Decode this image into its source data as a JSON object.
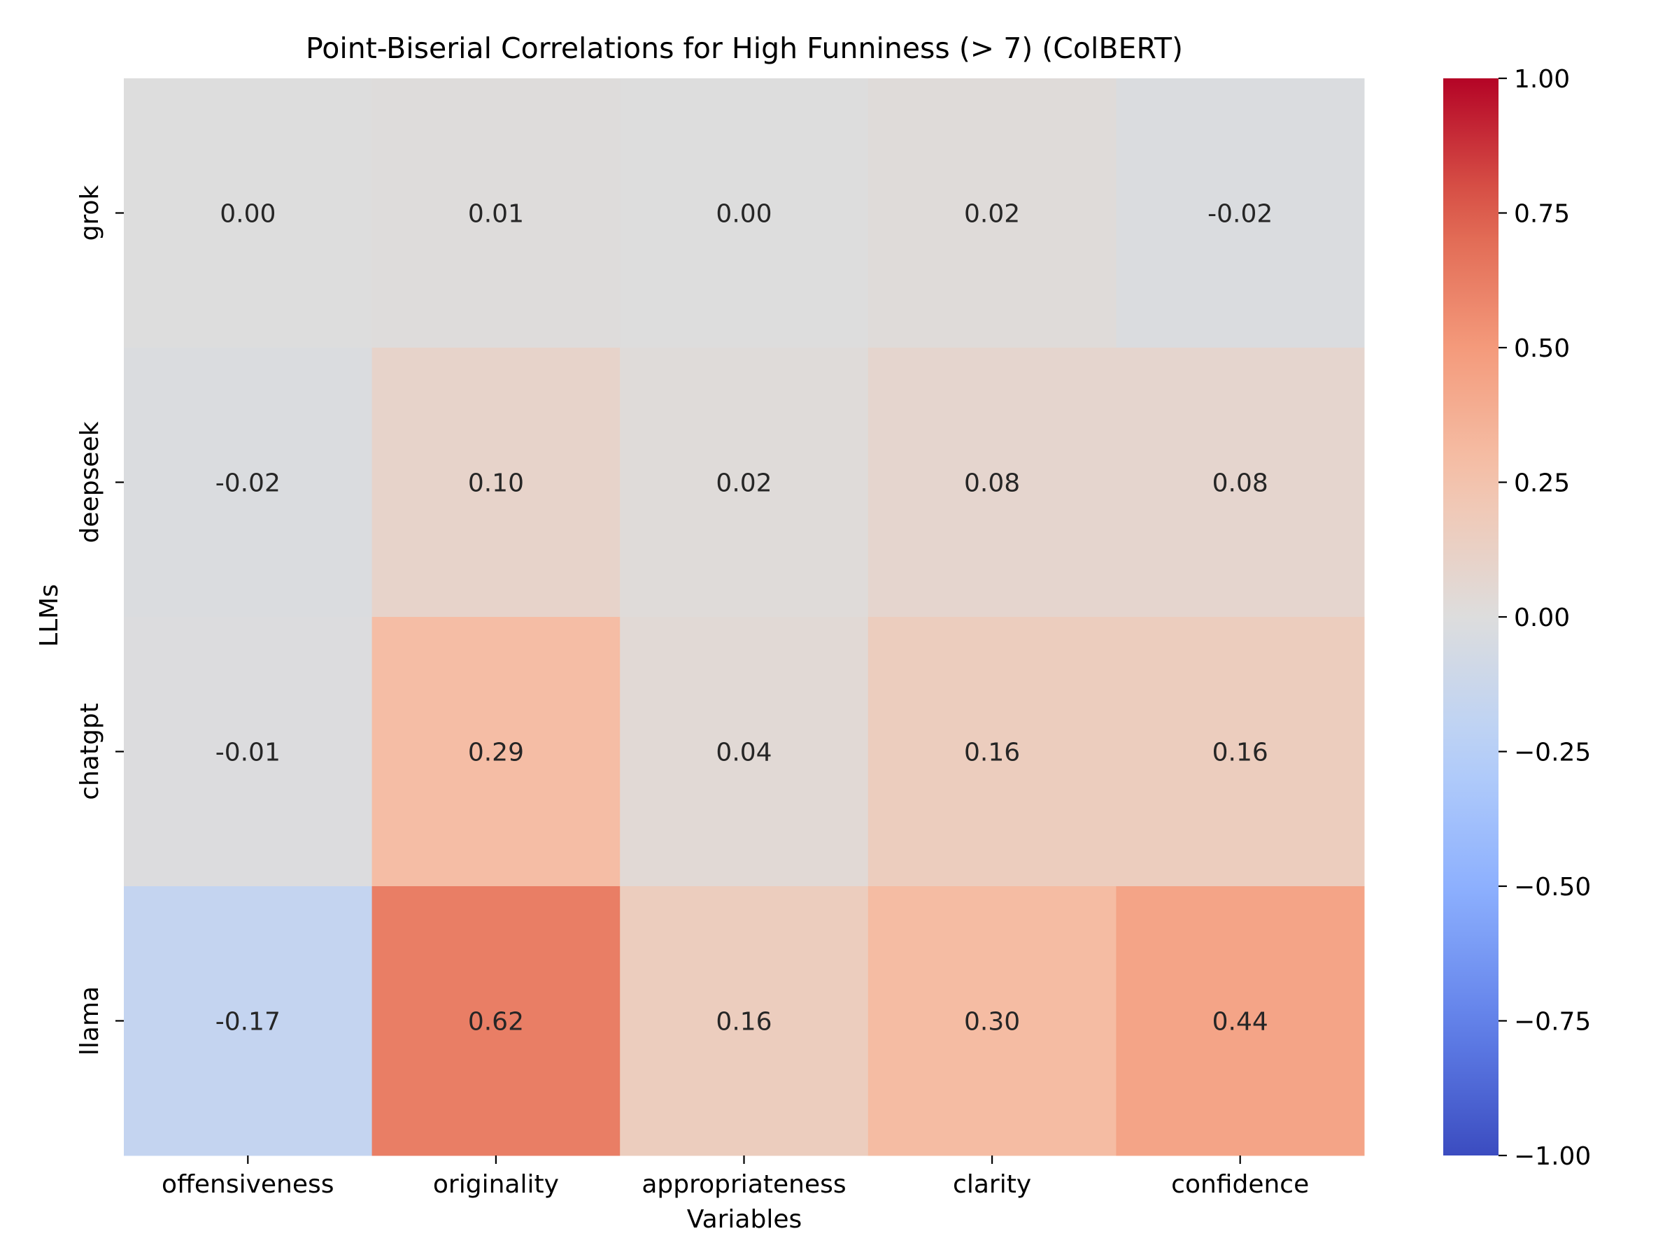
{
  "chart_data": {
    "type": "heatmap",
    "title": "Point-Biserial Correlations for High Funniness (> 7) (ColBERT)",
    "xlabel": "Variables",
    "ylabel": "LLMs",
    "x_categories": [
      "offensiveness",
      "originality",
      "appropriateness",
      "clarity",
      "confidence"
    ],
    "y_categories": [
      "grok",
      "deepseek",
      "chatgpt",
      "llama"
    ],
    "values": [
      [
        0.0,
        0.01,
        0.0,
        0.02,
        -0.02
      ],
      [
        -0.02,
        0.1,
        0.02,
        0.08,
        0.08
      ],
      [
        -0.01,
        0.29,
        0.04,
        0.16,
        0.16
      ],
      [
        -0.17,
        0.62,
        0.16,
        0.3,
        0.44
      ]
    ],
    "value_labels": [
      [
        "0.00",
        "0.01",
        "0.00",
        "0.02",
        "-0.02"
      ],
      [
        "-0.02",
        "0.10",
        "0.02",
        "0.08",
        "0.08"
      ],
      [
        "-0.01",
        "0.29",
        "0.04",
        "0.16",
        "0.16"
      ],
      [
        "-0.17",
        "0.62",
        "0.16",
        "0.30",
        "0.44"
      ]
    ],
    "colormap": "coolwarm",
    "vmin": -1.0,
    "vmax": 1.0,
    "colorbar_ticks": [
      1.0,
      0.75,
      0.5,
      0.25,
      0.0,
      -0.25,
      -0.5,
      -0.75,
      -1.0
    ],
    "colorbar_tick_labels": [
      "1.00",
      "0.75",
      "0.50",
      "0.25",
      "0.00",
      "−0.25",
      "−0.50",
      "−0.75",
      "−1.00"
    ],
    "grid": false,
    "legend": "colorbar-right"
  }
}
